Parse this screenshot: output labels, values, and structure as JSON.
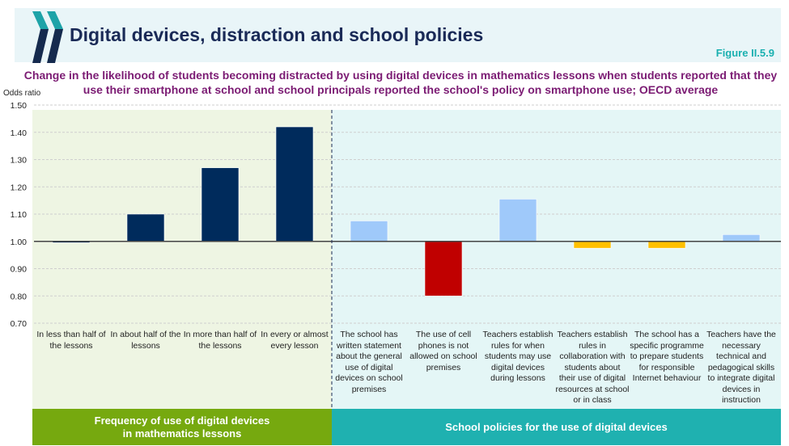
{
  "header": {
    "title": "Digital devices, distraction and school policies",
    "figure": "Figure II.5.9"
  },
  "colors": {
    "dark_navy": "#002b5c",
    "light_blue": "#9fc9fa",
    "red": "#c00000",
    "yellow": "#ffc000",
    "panel_left": "#eef5e3",
    "panel_right": "#e4f6f6",
    "band_left": "#76a90f",
    "band_right": "#1fb1b0"
  },
  "chart_data": {
    "type": "bar",
    "title": "Change in the likelihood of students becoming distracted by using digital devices in mathematics lessons when students reported that they use their smartphone at school and school principals reported the school's policy on smartphone use; OECD average",
    "ylabel": "Odds ratio",
    "ylim": [
      0.7,
      1.5
    ],
    "yticks": [
      "1.50",
      "1.40",
      "1.30",
      "1.20",
      "1.10",
      "1.00",
      "0.90",
      "0.80",
      "0.70"
    ],
    "baseline": 1.0,
    "grid": true,
    "groups": [
      {
        "label": "Frequency of use of digital devices in mathematics lessons",
        "categories": [
          "In less than half of the lessons",
          "In about half of the lessons",
          "In more than half of the lessons",
          "In every or almost every lesson"
        ],
        "values": [
          0.995,
          1.1,
          1.27,
          1.42
        ],
        "colors": [
          "#002b5c",
          "#002b5c",
          "#002b5c",
          "#002b5c"
        ]
      },
      {
        "label": "School policies for the use of digital devices",
        "categories": [
          "The school has written statement about the general use of digital devices on school premises",
          "The use of cell phones is not allowed on school premises",
          "Teachers establish rules for when students may use digital devices during lessons",
          "Teachers establish rules in collaboration with students about their use of digital resources at school or in class",
          "The school has a specific programme to prepare students for responsible Internet behaviour",
          "Teachers have the necessary technical and pedagogical skills to integrate digital devices in instruction"
        ],
        "values": [
          1.075,
          0.8,
          1.155,
          0.975,
          0.975,
          1.025
        ],
        "colors": [
          "#9fc9fa",
          "#c00000",
          "#9fc9fa",
          "#ffc000",
          "#ffc000",
          "#9fc9fa"
        ]
      }
    ]
  }
}
